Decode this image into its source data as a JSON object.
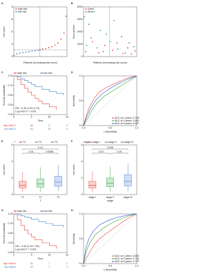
{
  "chart_data": [
    {
      "type": "scatter",
      "label": "A",
      "xlabel": "Patients (increasing risk score)",
      "ylabel": "risk score",
      "legend": "top-left",
      "xlim": [
        0,
        350
      ],
      "ylim": [
        0,
        8
      ],
      "yticks": [
        0,
        2,
        4,
        6,
        8
      ],
      "cutoff_x": 172,
      "cutoff_y": 1.1,
      "series": [
        {
          "name": "high risk",
          "color": "#e5443a",
          "x": [
            173,
            190,
            210,
            230,
            250,
            270,
            290,
            310,
            330,
            344
          ],
          "values": [
            1.1,
            1.2,
            1.3,
            1.45,
            1.6,
            1.85,
            2.2,
            2.8,
            3.8,
            6.5
          ]
        },
        {
          "name": "low risk",
          "color": "#3b7dc4",
          "x": [
            1,
            20,
            40,
            60,
            80,
            100,
            120,
            140,
            160,
            172
          ],
          "values": [
            0.2,
            0.45,
            0.55,
            0.65,
            0.72,
            0.8,
            0.88,
            0.95,
            1.02,
            1.08
          ]
        }
      ]
    },
    {
      "type": "scatter",
      "label": "B",
      "xlabel": "Patients (increasing risk score)",
      "ylabel": "Survival time",
      "legend": "top-left",
      "xlim": [
        0,
        350
      ],
      "ylim": [
        0,
        4000
      ],
      "yticks": [
        0,
        1000,
        2000,
        3000,
        4000
      ],
      "cutoff_x": 172,
      "series": [
        {
          "name": "Dead",
          "color": "#e5443a",
          "x": [
            15,
            60,
            100,
            140,
            190,
            220,
            260,
            290,
            315,
            340
          ],
          "values": [
            400,
            1200,
            300,
            900,
            500,
            1100,
            250,
            700,
            200,
            450
          ]
        },
        {
          "name": "Alive",
          "color": "#1fa59a",
          "x": [
            5,
            20,
            35,
            50,
            70,
            90,
            110,
            130,
            150,
            175,
            200,
            225,
            250,
            275,
            300,
            330
          ],
          "values": [
            3200,
            900,
            2600,
            1500,
            3600,
            700,
            2100,
            400,
            1800,
            1200,
            2900,
            600,
            1600,
            300,
            1100,
            800
          ]
        }
      ]
    },
    {
      "type": "km",
      "label": "C",
      "xlabel": "Time",
      "ylabel": "Survival probability",
      "legend": "top",
      "xlim": [
        0,
        15
      ],
      "xticks": [
        0,
        5,
        10,
        15
      ],
      "ylim": [
        0,
        1
      ],
      "yticks": [
        {
          "value": 0,
          "label": "0.00"
        },
        {
          "value": 0.25,
          "label": "0.25"
        },
        {
          "value": 0.5,
          "label": "0.50"
        },
        {
          "value": 0.75,
          "label": "0.75"
        },
        {
          "value": 1,
          "label": "1.00"
        }
      ],
      "annotations": [
        "HR = 2.45 (1.61-3.74)",
        "Log-rank P < 0.001"
      ],
      "series": [
        {
          "name": "high risk",
          "color": "#e5443a",
          "x": [
            0,
            1,
            2,
            3,
            4,
            5,
            6,
            7,
            8,
            10,
            12
          ],
          "values": [
            1,
            0.9,
            0.78,
            0.68,
            0.58,
            0.5,
            0.42,
            0.35,
            0.28,
            0.2,
            0.12
          ],
          "at_risk": [
            172,
            38,
            8,
            0
          ]
        },
        {
          "name": "low risk",
          "color": "#3b7dc4",
          "x": [
            0,
            1,
            2,
            3,
            4,
            5,
            6,
            8,
            10,
            12,
            14
          ],
          "values": [
            1,
            0.97,
            0.92,
            0.88,
            0.83,
            0.78,
            0.72,
            0.65,
            0.6,
            0.55,
            0.5
          ],
          "at_risk": [
            172,
            63,
            15,
            3
          ]
        }
      ]
    },
    {
      "type": "roc",
      "label": "D",
      "xlabel": "1-Specificity",
      "ylabel": "Sensitivity",
      "legend": "bottom-right",
      "xlim": [
        0,
        1
      ],
      "xticks": [
        {
          "value": 0,
          "label": "0.0"
        },
        {
          "value": 0.5,
          "label": "0.5"
        },
        {
          "value": 1,
          "label": "1.0"
        }
      ],
      "ylim": [
        0,
        1
      ],
      "yticks": [
        {
          "value": 0,
          "label": "0.0"
        },
        {
          "value": 0.5,
          "label": "0.5"
        },
        {
          "value": 1,
          "label": "1.0"
        }
      ],
      "series": [
        {
          "name": "AUC at 1 years: 0.708",
          "color": "#e5443a",
          "x": [
            0,
            0.05,
            0.1,
            0.2,
            0.3,
            0.45,
            0.6,
            0.8,
            1
          ],
          "values": [
            0,
            0.2,
            0.35,
            0.55,
            0.68,
            0.78,
            0.85,
            0.95,
            1
          ]
        },
        {
          "name": "AUC at 3 years: 0.663",
          "color": "#2ca02c",
          "x": [
            0,
            0.08,
            0.15,
            0.25,
            0.4,
            0.55,
            0.7,
            0.85,
            1
          ],
          "values": [
            0,
            0.15,
            0.3,
            0.45,
            0.6,
            0.7,
            0.8,
            0.9,
            1
          ]
        },
        {
          "name": "AUC at 5 years: 0.697",
          "color": "#1f4fd0",
          "x": [
            0,
            0.06,
            0.12,
            0.22,
            0.35,
            0.5,
            0.65,
            0.82,
            1
          ],
          "values": [
            0,
            0.18,
            0.32,
            0.5,
            0.64,
            0.75,
            0.84,
            0.93,
            1
          ]
        }
      ]
    },
    {
      "type": "box",
      "label": "E",
      "xlabel": "T",
      "ylabel": "risk score",
      "legend": "top",
      "legend_title": "T",
      "categories": [
        "T1",
        "T2",
        "T3"
      ],
      "colors": [
        "#e8473b",
        "#3aa84a",
        "#4a7fd0"
      ],
      "ylim": [
        0,
        6
      ],
      "yticks": [
        0,
        2,
        4,
        6
      ],
      "min": [
        0.3,
        0.3,
        0.4
      ],
      "q1": [
        0.8,
        0.9,
        1.0
      ],
      "median": [
        1.1,
        1.3,
        1.5
      ],
      "q3": [
        1.6,
        1.9,
        2.2
      ],
      "max": [
        2.7,
        3.3,
        3.6
      ],
      "annotations": [
        "0.31",
        "0.0085",
        "0.12"
      ]
    },
    {
      "type": "box",
      "label": "F",
      "xlabel": "stage",
      "ylabel": "risk score",
      "legend": "top",
      "legend_title": "stage",
      "categories": [
        "stage I",
        "stage II",
        "stage III"
      ],
      "colors": [
        "#e8473b",
        "#3aa84a",
        "#4a7fd0"
      ],
      "ylim": [
        0,
        6
      ],
      "yticks": [
        0,
        2,
        4,
        6
      ],
      "min": [
        0.3,
        0.35,
        0.4
      ],
      "q1": [
        0.8,
        0.95,
        1.05
      ],
      "median": [
        1.1,
        1.35,
        1.6
      ],
      "q3": [
        1.6,
        2.0,
        2.4
      ],
      "max": [
        2.8,
        3.4,
        3.8
      ],
      "annotations": [
        "0.15",
        "0.25",
        "0.038"
      ]
    },
    {
      "type": "km",
      "label": "G",
      "xlabel": "Time",
      "ylabel": "Survival probability",
      "legend": "top",
      "xlim": [
        0,
        15
      ],
      "xticks": [
        0,
        5,
        10,
        15
      ],
      "ylim": [
        0,
        1
      ],
      "yticks": [
        {
          "value": 0,
          "label": "0.00"
        },
        {
          "value": 0.25,
          "label": "0.25"
        },
        {
          "value": 0.5,
          "label": "0.50"
        },
        {
          "value": 0.75,
          "label": "0.75"
        },
        {
          "value": 1,
          "label": "1.00"
        }
      ],
      "annotations": [
        "HR = 4.30 (2.40-7.69)",
        "Log-rank P < 0.001"
      ],
      "series": [
        {
          "name": "high risk",
          "color": "#e5443a",
          "x": [
            0,
            1,
            2,
            3,
            4,
            5,
            6,
            8,
            10,
            12
          ],
          "values": [
            1,
            0.85,
            0.7,
            0.58,
            0.48,
            0.4,
            0.33,
            0.25,
            0.18,
            0.1
          ],
          "at_risk": [
            116,
            30,
            7,
            1
          ]
        },
        {
          "name": "low risk",
          "color": "#3b7dc4",
          "x": [
            0,
            1,
            2,
            3,
            4,
            5,
            7,
            9,
            11,
            14
          ],
          "values": [
            1,
            0.98,
            0.95,
            0.92,
            0.9,
            0.86,
            0.8,
            0.75,
            0.7,
            0.65
          ],
          "at_risk": [
            116,
            42,
            7,
            1
          ]
        }
      ]
    },
    {
      "type": "roc",
      "label": "H",
      "xlabel": "1-Specificity",
      "ylabel": "Sensitivity",
      "legend": "bottom-right",
      "xlim": [
        0,
        1
      ],
      "xticks": [
        {
          "value": 0,
          "label": "0.0"
        },
        {
          "value": 0.5,
          "label": "0.5"
        },
        {
          "value": 1,
          "label": "1.0"
        }
      ],
      "ylim": [
        0,
        1
      ],
      "yticks": [
        {
          "value": 0,
          "label": "0.0"
        },
        {
          "value": 0.5,
          "label": "0.5"
        },
        {
          "value": 1,
          "label": "1.0"
        }
      ],
      "series": [
        {
          "name": "AUC at 1 years: 0.645",
          "color": "#e5443a",
          "x": [
            0,
            0.1,
            0.2,
            0.3,
            0.45,
            0.6,
            0.75,
            0.9,
            1
          ],
          "values": [
            0,
            0.2,
            0.38,
            0.5,
            0.62,
            0.74,
            0.85,
            0.95,
            1
          ]
        },
        {
          "name": "AUC at 3 years: 0.716",
          "color": "#2ca02c",
          "x": [
            0,
            0.05,
            0.12,
            0.22,
            0.35,
            0.5,
            0.65,
            0.85,
            1
          ],
          "values": [
            0,
            0.25,
            0.42,
            0.58,
            0.7,
            0.8,
            0.88,
            0.96,
            1
          ]
        },
        {
          "name": "AUC at 5 years: 0.779",
          "color": "#1f4fd0",
          "x": [
            0,
            0.04,
            0.1,
            0.18,
            0.3,
            0.45,
            0.6,
            0.8,
            1
          ],
          "values": [
            0,
            0.3,
            0.5,
            0.65,
            0.78,
            0.86,
            0.92,
            0.97,
            1
          ]
        }
      ]
    }
  ]
}
